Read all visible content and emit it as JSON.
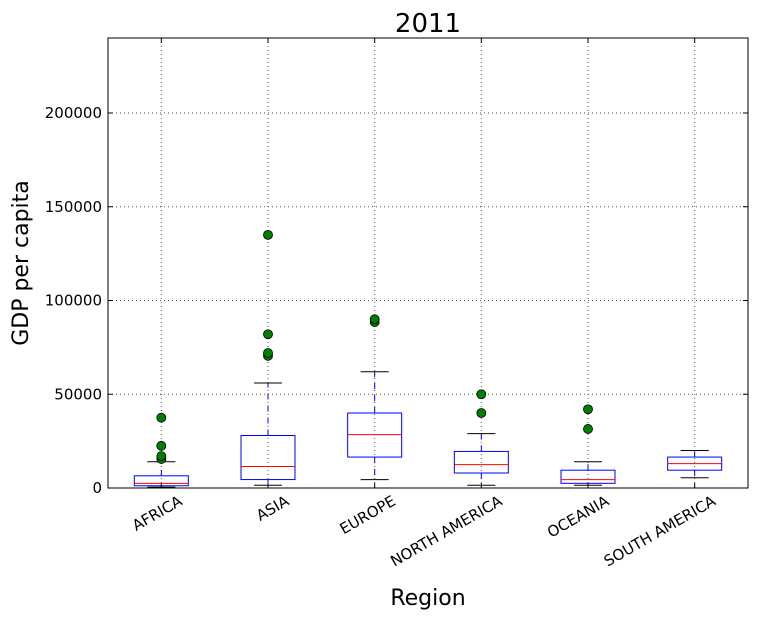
{
  "chart_data": {
    "type": "boxplot",
    "title": "2011",
    "xlabel": "Region",
    "ylabel": "GDP per capita",
    "ylim": [
      0,
      240000
    ],
    "yticks": [
      0,
      50000,
      100000,
      150000,
      200000
    ],
    "ytick_labels": [
      "0",
      "50000",
      "100000",
      "150000",
      "200000"
    ],
    "grid": true,
    "categories": [
      "AFRICA",
      "ASIA",
      "EUROPE",
      "NORTH AMERICA",
      "OCEANIA",
      "SOUTH AMERICA"
    ],
    "boxes": [
      {
        "category": "AFRICA",
        "whisker_low": 500,
        "q1": 1200,
        "median": 2500,
        "q3": 6500,
        "whisker_high": 14000,
        "outliers": [
          15500,
          17000,
          22500,
          37500
        ]
      },
      {
        "category": "ASIA",
        "whisker_low": 1500,
        "q1": 4500,
        "median": 11500,
        "q3": 28000,
        "whisker_high": 56000,
        "outliers": [
          70500,
          72000,
          82000,
          135000
        ]
      },
      {
        "category": "EUROPE",
        "whisker_low": 4500,
        "q1": 16500,
        "median": 28500,
        "q3": 40000,
        "whisker_high": 62000,
        "outliers": [
          88500,
          90000
        ]
      },
      {
        "category": "NORTH AMERICA",
        "whisker_low": 1500,
        "q1": 8000,
        "median": 12500,
        "q3": 19500,
        "whisker_high": 29000,
        "outliers": [
          40000,
          50000
        ]
      },
      {
        "category": "OCEANIA",
        "whisker_low": 1500,
        "q1": 2500,
        "median": 4500,
        "q3": 9500,
        "whisker_high": 14000,
        "outliers": [
          31500,
          42000
        ]
      },
      {
        "category": "SOUTH AMERICA",
        "whisker_low": 5500,
        "q1": 9500,
        "median": 13000,
        "q3": 16500,
        "whisker_high": 20000,
        "outliers": []
      }
    ],
    "colors": {
      "box": "#0000ff",
      "median": "#ff0000",
      "whisker": "#0000ff",
      "cap": "#000000",
      "outlier_fill": "#008000",
      "outlier_edge": "#000000",
      "grid": "#555555"
    }
  }
}
